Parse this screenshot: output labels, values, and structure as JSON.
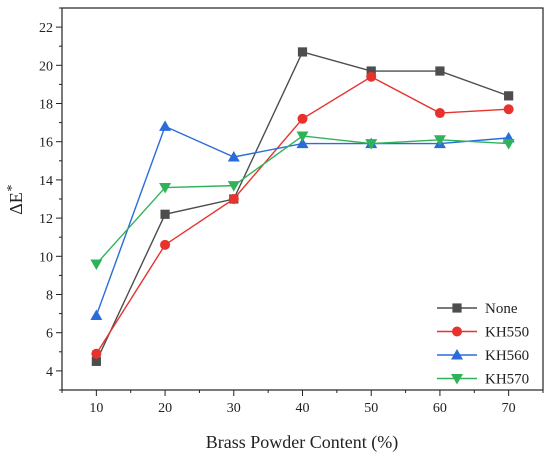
{
  "chart_data": {
    "type": "line",
    "x": [
      10,
      20,
      30,
      40,
      50,
      60,
      70
    ],
    "xlabel": "Brass Powder Content (%)",
    "ylabel_main": "ΔE",
    "ylabel_sup": "*",
    "xlim": [
      5,
      75
    ],
    "ylim": [
      3,
      23
    ],
    "xticks": [
      10,
      20,
      30,
      40,
      50,
      60,
      70
    ],
    "yticks": [
      4,
      6,
      8,
      10,
      12,
      14,
      16,
      18,
      20,
      22
    ],
    "grid": false,
    "legend_position": "bottom-right",
    "series": [
      {
        "name": "None",
        "color": "#4d4d4d",
        "marker": "square",
        "values": [
          4.5,
          12.2,
          13.0,
          20.7,
          19.7,
          19.7,
          18.4
        ]
      },
      {
        "name": "KH550",
        "color": "#e8322d",
        "marker": "circle",
        "values": [
          4.9,
          10.6,
          13.0,
          17.2,
          19.4,
          17.5,
          17.7
        ]
      },
      {
        "name": "KH560",
        "color": "#2b6cd9",
        "marker": "triangle-up",
        "values": [
          6.9,
          16.8,
          15.2,
          15.9,
          15.9,
          15.9,
          16.2
        ]
      },
      {
        "name": "KH570",
        "color": "#2fb35a",
        "marker": "triangle-down",
        "values": [
          9.6,
          13.6,
          13.7,
          16.3,
          15.9,
          16.1,
          15.9
        ]
      }
    ]
  }
}
